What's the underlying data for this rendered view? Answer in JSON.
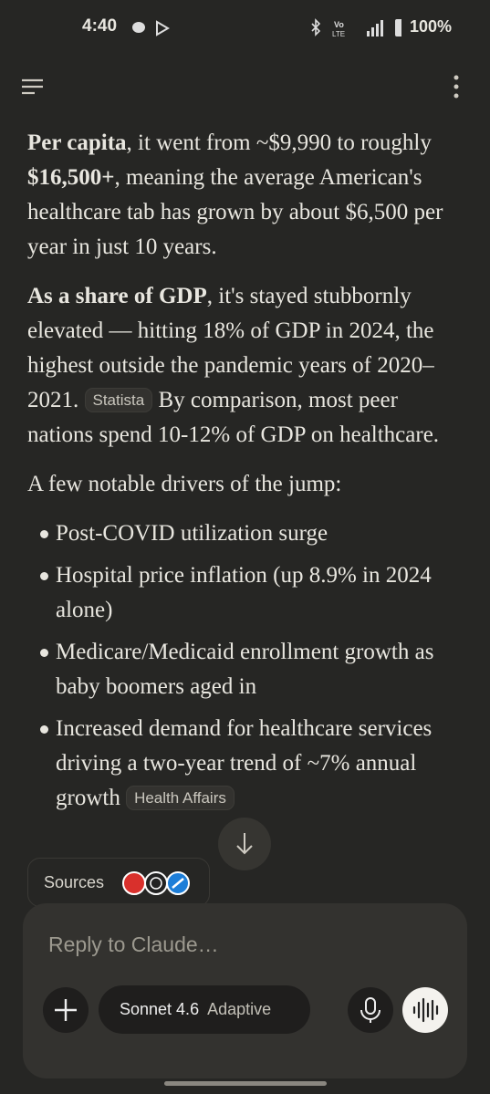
{
  "status_bar": {
    "time": "4:40",
    "battery": "100%"
  },
  "message": {
    "paragraphs": [
      {
        "runs": [
          {
            "text": "Per capita",
            "style": "bold"
          },
          {
            "text": ", it went from ~$9,990 to roughly "
          },
          {
            "text": "$16,500+",
            "style": "bold"
          },
          {
            "text": ", meaning the average American's healthcare tab has grown by about $6,500 per year in just 10 years."
          }
        ]
      },
      {
        "runs": [
          {
            "text": "As a share of GDP",
            "style": "bold"
          },
          {
            "text": ", it's stayed stubbornly elevated — hitting 18% of GDP in 2024, the highest outside the pandemic years of 2020–2021. "
          },
          {
            "text": "Statista",
            "style": "chip"
          },
          {
            "text": " By comparison, most peer nations spend 10-12% of GDP on healthcare."
          }
        ]
      },
      {
        "runs": [
          {
            "text": "A few notable drivers of the jump:"
          }
        ]
      }
    ],
    "bullets": [
      {
        "runs": [
          {
            "text": "Post-COVID utilization surge"
          }
        ]
      },
      {
        "runs": [
          {
            "text": "Hospital price inflation (up 8.9% in 2024 alone)"
          }
        ]
      },
      {
        "runs": [
          {
            "text": "Medicare/Medicaid enrollment growth as baby boomers aged in"
          }
        ]
      },
      {
        "runs": [
          {
            "text": "Increased demand for healthcare services driving a two-year trend of ~7% annual growth "
          },
          {
            "text": "Health Affairs",
            "style": "chip"
          }
        ]
      }
    ]
  },
  "sources_button": "Sources",
  "composer": {
    "placeholder": "Reply to Claude…",
    "model": "Sonnet 4.6",
    "mode": "Adaptive"
  }
}
